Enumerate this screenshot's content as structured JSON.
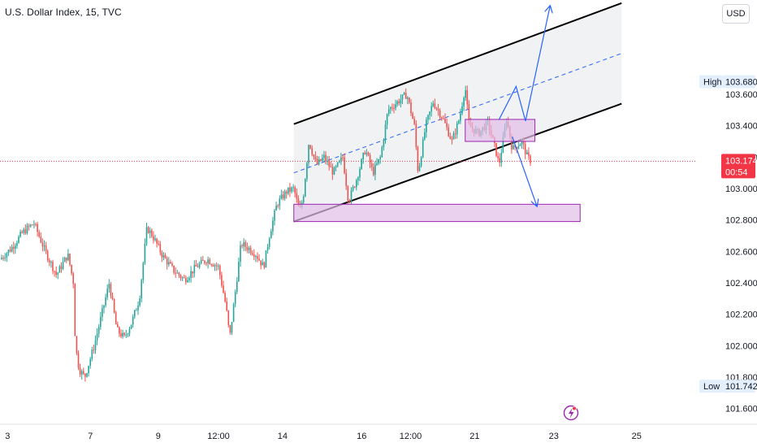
{
  "header": {
    "title": "U.S. Dollar Index, 15, TVC",
    "currency": "USD"
  },
  "price_axis": {
    "high_label": "High",
    "high_value": "103.680",
    "low_label": "Low",
    "low_value": "101.742",
    "current_price": "103.174",
    "countdown": "00:54"
  },
  "colors": {
    "up": "#26a69a",
    "down": "#ef5350",
    "channel": "#000000",
    "zone_stroke": "#9c27b0",
    "zone_fill": "#e1bee7",
    "arrow": "#2962ff",
    "price_line": "#f23645"
  },
  "chart_data": {
    "type": "candlestick",
    "title": "U.S. Dollar Index, 15, TVC",
    "ylim": [
      101.5,
      104.2
    ],
    "y_ticks": [
      "103.600",
      "103.400",
      "103.200",
      "103.000",
      "102.800",
      "102.600",
      "102.400",
      "102.200",
      "102.000",
      "101.800",
      "101.600"
    ],
    "y_tick_values": [
      103.6,
      103.4,
      103.2,
      103.0,
      102.8,
      102.6,
      102.4,
      102.2,
      102.0,
      101.8,
      101.6
    ],
    "x_ticks": [
      "3",
      "7",
      "9",
      "12:00",
      "14",
      "16",
      "12:00",
      "21",
      "23",
      "25"
    ],
    "x_tick_positions": [
      0.2,
      2.4,
      4.2,
      5.8,
      7.5,
      9.6,
      10.9,
      12.6,
      14.7,
      16.9
    ],
    "xlim": [
      0,
      18.5
    ],
    "high": 103.68,
    "low": 101.742,
    "last": 103.174,
    "price_path": [
      [
        0.0,
        102.55
      ],
      [
        0.3,
        102.62
      ],
      [
        0.6,
        102.72
      ],
      [
        0.9,
        102.78
      ],
      [
        1.2,
        102.6
      ],
      [
        1.5,
        102.45
      ],
      [
        1.8,
        102.58
      ],
      [
        1.95,
        102.4
      ],
      [
        2.0,
        102.0
      ],
      [
        2.1,
        101.85
      ],
      [
        2.25,
        101.8
      ],
      [
        2.5,
        102.0
      ],
      [
        2.75,
        102.25
      ],
      [
        2.9,
        102.4
      ],
      [
        3.1,
        102.1
      ],
      [
        3.3,
        102.05
      ],
      [
        3.5,
        102.15
      ],
      [
        3.7,
        102.3
      ],
      [
        3.9,
        102.75
      ],
      [
        4.05,
        102.7
      ],
      [
        4.3,
        102.58
      ],
      [
        4.6,
        102.48
      ],
      [
        4.9,
        102.42
      ],
      [
        5.2,
        102.5
      ],
      [
        5.5,
        102.55
      ],
      [
        5.8,
        102.5
      ],
      [
        6.0,
        102.25
      ],
      [
        6.1,
        102.05
      ],
      [
        6.25,
        102.35
      ],
      [
        6.4,
        102.65
      ],
      [
        6.6,
        102.62
      ],
      [
        6.8,
        102.58
      ],
      [
        7.0,
        102.5
      ],
      [
        7.15,
        102.7
      ],
      [
        7.35,
        102.9
      ],
      [
        7.6,
        102.98
      ],
      [
        7.8,
        103.0
      ],
      [
        7.95,
        102.85
      ],
      [
        8.05,
        102.95
      ],
      [
        8.2,
        103.3
      ],
      [
        8.4,
        103.15
      ],
      [
        8.6,
        103.2
      ],
      [
        8.85,
        103.1
      ],
      [
        9.1,
        103.2
      ],
      [
        9.25,
        102.92
      ],
      [
        9.45,
        103.05
      ],
      [
        9.7,
        103.25
      ],
      [
        9.9,
        103.1
      ],
      [
        10.1,
        103.2
      ],
      [
        10.3,
        103.5
      ],
      [
        10.55,
        103.55
      ],
      [
        10.8,
        103.6
      ],
      [
        11.0,
        103.4
      ],
      [
        11.1,
        103.1
      ],
      [
        11.3,
        103.4
      ],
      [
        11.5,
        103.55
      ],
      [
        11.75,
        103.45
      ],
      [
        12.0,
        103.3
      ],
      [
        12.2,
        103.45
      ],
      [
        12.35,
        103.65
      ],
      [
        12.45,
        103.4
      ],
      [
        12.7,
        103.35
      ],
      [
        12.95,
        103.42
      ],
      [
        13.15,
        103.25
      ],
      [
        13.25,
        103.15
      ],
      [
        13.45,
        103.45
      ],
      [
        13.6,
        103.25
      ],
      [
        13.85,
        103.3
      ],
      [
        14.0,
        103.2
      ],
      [
        14.1,
        103.174
      ]
    ],
    "annotations": {
      "channel_upper": [
        [
          7.8,
          103.41
        ],
        [
          16.5,
          104.18
        ]
      ],
      "channel_lower": [
        [
          7.8,
          102.79
        ],
        [
          16.5,
          103.54
        ]
      ],
      "channel_mid": [
        [
          7.8,
          103.1
        ],
        [
          16.5,
          103.86
        ]
      ],
      "zone_resistance": {
        "x": [
          12.35,
          14.2
        ],
        "y": [
          103.3,
          103.44
        ]
      },
      "zone_support": {
        "x": [
          7.8,
          15.4
        ],
        "y": [
          102.79,
          102.9
        ]
      },
      "arrow_up_path": [
        [
          13.25,
          103.44
        ],
        [
          13.7,
          103.65
        ],
        [
          13.95,
          103.43
        ],
        [
          14.6,
          104.16
        ]
      ],
      "arrow_down_path": [
        [
          13.6,
          103.33
        ],
        [
          14.25,
          102.89
        ]
      ]
    }
  }
}
